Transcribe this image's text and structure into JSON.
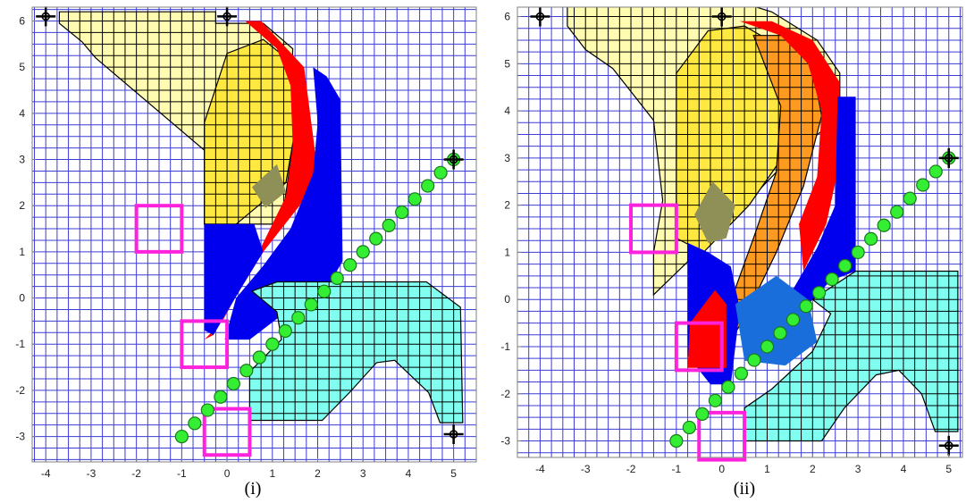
{
  "colors": {
    "background": "#ffffff",
    "grid": "#3c3cd6",
    "axis": "#808080",
    "cell_outline": "#000000",
    "yellow_light": "#fffbb0",
    "yellow": "#ffe840",
    "orange": "#ff9a20",
    "red": "#ff0000",
    "blue": "#0000ee",
    "blue_mid": "#1a6edc",
    "olive": "#8f8f58",
    "cyan": "#80fff0",
    "green_marker": "#33ee33",
    "magenta": "#ff22dd"
  },
  "chart_data": [
    {
      "type": "scatter",
      "caption": "(i)",
      "xlim": [
        -4.3,
        5.5
      ],
      "ylim": [
        -3.55,
        6.3
      ],
      "x_ticks": [
        -4,
        -3,
        -2,
        -1,
        0,
        1,
        2,
        3,
        4,
        5
      ],
      "y_ticks": [
        -3,
        -2,
        -1,
        0,
        1,
        2,
        3,
        4,
        5,
        6
      ],
      "grid": true,
      "grid_step": 0.25,
      "grid_color": "#3c3cd6",
      "endpoint_markers": [
        [
          -4,
          6.1
        ],
        [
          0,
          6.1
        ],
        [
          5,
          3
        ],
        [
          5,
          -2.95
        ]
      ],
      "green_markers_line": {
        "from": [
          -1,
          -3
        ],
        "to": [
          5,
          3
        ],
        "count": 22
      },
      "magenta_boxes": [
        {
          "x": [
            -2,
            -1
          ],
          "y": [
            1,
            2
          ]
        },
        {
          "x": [
            -1,
            0
          ],
          "y": [
            -1.5,
            -0.5
          ]
        },
        {
          "x": [
            -0.5,
            0.5
          ],
          "y": [
            -3.4,
            -2.4
          ]
        }
      ],
      "regions": [
        {
          "color": "yellow_light",
          "outlined": true,
          "polygon": [
            [
              -3.7,
              6.2
            ],
            [
              -0.25,
              6.2
            ],
            [
              -0.25,
              5.95
            ],
            [
              0.8,
              5.95
            ],
            [
              1.45,
              5.4
            ],
            [
              1.4,
              4
            ],
            [
              1.5,
              3.6
            ],
            [
              1.2,
              1.6
            ],
            [
              -0.5,
              1.6
            ],
            [
              -0.5,
              3.2
            ],
            [
              -2.9,
              5.2
            ],
            [
              -3.2,
              5.55
            ],
            [
              -3.7,
              5.95
            ]
          ]
        },
        {
          "color": "yellow",
          "outlined": true,
          "polygon": [
            [
              -0.5,
              1.6
            ],
            [
              0.2,
              1.6
            ],
            [
              1.3,
              2.5
            ],
            [
              1.6,
              4.2
            ],
            [
              1.3,
              5.2
            ],
            [
              0.8,
              5.6
            ],
            [
              0,
              5.3
            ],
            [
              -0.5,
              3.8
            ]
          ]
        },
        {
          "color": "red",
          "outlined": false,
          "polygon": [
            [
              0.4,
              6.0
            ],
            [
              0.75,
              6.0
            ],
            [
              1.7,
              5.0
            ],
            [
              1.9,
              3.5
            ],
            [
              2.0,
              2.7
            ],
            [
              1.6,
              2.0
            ],
            [
              0.8,
              1.0
            ],
            [
              0.3,
              0.2
            ],
            [
              -0.3,
              -0.8
            ],
            [
              -0.5,
              -0.9
            ],
            [
              -0.1,
              -0.5
            ],
            [
              0.4,
              0.4
            ],
            [
              0.9,
              1.4
            ],
            [
              1.3,
              2.2
            ],
            [
              1.45,
              3.3
            ],
            [
              1.4,
              4.6
            ],
            [
              1.1,
              5.4
            ]
          ]
        },
        {
          "color": "blue",
          "outlined": false,
          "polygon": [
            [
              1.9,
              5.0
            ],
            [
              2.2,
              4.8
            ],
            [
              2.5,
              4.3
            ],
            [
              2.55,
              0.8
            ],
            [
              2.2,
              0.2
            ],
            [
              1.3,
              -0.3
            ],
            [
              0.5,
              -0.9
            ],
            [
              -0.05,
              -0.9
            ],
            [
              0.2,
              0.0
            ],
            [
              0.8,
              0.7
            ],
            [
              1.4,
              1.5
            ],
            [
              1.9,
              2.7
            ],
            [
              2.0,
              3.8
            ]
          ]
        },
        {
          "color": "blue",
          "outlined": false,
          "polygon": [
            [
              -0.5,
              1.6
            ],
            [
              -0.5,
              -0.7
            ],
            [
              -0.3,
              -0.8
            ],
            [
              0.3,
              0.2
            ],
            [
              0.8,
              1.0
            ],
            [
              0.6,
              1.6
            ]
          ]
        },
        {
          "color": "olive",
          "outlined": false,
          "polygon": [
            [
              0.55,
              2.4
            ],
            [
              1.1,
              2.9
            ],
            [
              1.3,
              2.3
            ],
            [
              0.85,
              1.95
            ]
          ]
        },
        {
          "color": "cyan",
          "outlined": true,
          "polygon": [
            [
              0.55,
              0.15
            ],
            [
              1.1,
              0.35
            ],
            [
              4.4,
              0.35
            ],
            [
              5.15,
              -0.2
            ],
            [
              5.2,
              -2.7
            ],
            [
              4.7,
              -2.7
            ],
            [
              4.45,
              -2.05
            ],
            [
              3.7,
              -1.35
            ],
            [
              3.3,
              -1.4
            ],
            [
              2.7,
              -2.05
            ],
            [
              2.1,
              -2.65
            ],
            [
              0.5,
              -2.65
            ],
            [
              0.5,
              -1.6
            ],
            [
              1.2,
              -0.9
            ],
            [
              1.1,
              -0.3
            ]
          ]
        }
      ]
    },
    {
      "type": "scatter",
      "caption": "(ii)",
      "xlim": [
        -4.5,
        5.3
      ],
      "ylim": [
        -3.35,
        6.2
      ],
      "x_ticks": [
        -4,
        -3,
        -2,
        -1,
        0,
        1,
        2,
        3,
        4,
        5
      ],
      "y_ticks": [
        -3,
        -2,
        -1,
        0,
        1,
        2,
        3,
        4,
        5,
        6
      ],
      "grid": true,
      "grid_step": 0.25,
      "grid_color": "#3c3cd6",
      "endpoint_markers": [
        [
          -4,
          6.0
        ],
        [
          0,
          6.0
        ],
        [
          5,
          3
        ],
        [
          5,
          -3.1
        ]
      ],
      "green_markers_line": {
        "from": [
          -1,
          -3
        ],
        "to": [
          5,
          3
        ],
        "count": 22
      },
      "magenta_boxes": [
        {
          "x": [
            -2,
            -1
          ],
          "y": [
            1,
            2
          ]
        },
        {
          "x": [
            -1,
            0
          ],
          "y": [
            -1.5,
            -0.5
          ]
        },
        {
          "x": [
            -0.5,
            0.5
          ],
          "y": [
            -3.4,
            -2.4
          ]
        }
      ],
      "regions": [
        {
          "color": "yellow_light",
          "outlined": true,
          "polygon": [
            [
              -3.4,
              6.25
            ],
            [
              0.6,
              6.25
            ],
            [
              1.1,
              6.1
            ],
            [
              2.1,
              5.5
            ],
            [
              2.6,
              4.8
            ],
            [
              2.6,
              3.9
            ],
            [
              1.5,
              3.0
            ],
            [
              0,
              1.5
            ],
            [
              -1.5,
              0.1
            ],
            [
              -1.5,
              1.0
            ],
            [
              -1.3,
              2.1
            ],
            [
              -1.5,
              3.8
            ],
            [
              -2.4,
              4.9
            ],
            [
              -3.0,
              5.3
            ],
            [
              -3.4,
              5.8
            ]
          ]
        },
        {
          "color": "yellow",
          "outlined": true,
          "polygon": [
            [
              -1.0,
              4.8
            ],
            [
              -0.3,
              5.7
            ],
            [
              0.5,
              5.8
            ],
            [
              1.4,
              5.3
            ],
            [
              1.6,
              4.2
            ],
            [
              1.4,
              3.1
            ],
            [
              0.6,
              2.0
            ],
            [
              -0.4,
              1.0
            ],
            [
              -1.0,
              1.3
            ]
          ]
        },
        {
          "color": "orange",
          "outlined": true,
          "polygon": [
            [
              0.7,
              5.6
            ],
            [
              1.4,
              5.6
            ],
            [
              2.0,
              4.9
            ],
            [
              2.2,
              3.9
            ],
            [
              1.8,
              2.4
            ],
            [
              1.2,
              1.0
            ],
            [
              0.5,
              -0.4
            ],
            [
              0.3,
              -0.7
            ],
            [
              0.1,
              -0.3
            ],
            [
              0.7,
              1.3
            ],
            [
              1.2,
              2.7
            ],
            [
              1.3,
              4.1
            ]
          ]
        },
        {
          "color": "red",
          "outlined": false,
          "polygon": [
            [
              0.4,
              5.9
            ],
            [
              1.1,
              5.9
            ],
            [
              2.0,
              5.5
            ],
            [
              2.6,
              4.6
            ],
            [
              2.55,
              2.7
            ],
            [
              2.3,
              1.6
            ],
            [
              1.8,
              0.6
            ],
            [
              1.7,
              1.6
            ],
            [
              2.1,
              2.6
            ],
            [
              2.2,
              4.0
            ],
            [
              1.9,
              5.0
            ],
            [
              1.3,
              5.6
            ]
          ]
        },
        {
          "color": "blue",
          "outlined": false,
          "polygon": [
            [
              2.55,
              4.3
            ],
            [
              2.95,
              4.3
            ],
            [
              2.95,
              0.6
            ],
            [
              2.4,
              0.4
            ],
            [
              2.0,
              0.0
            ],
            [
              1.4,
              -0.7
            ],
            [
              0.9,
              -1.1
            ],
            [
              0.7,
              -0.9
            ],
            [
              1.5,
              0.1
            ],
            [
              2.1,
              1.1
            ],
            [
              2.5,
              2.0
            ]
          ]
        },
        {
          "color": "blue",
          "outlined": false,
          "polygon": [
            [
              -0.75,
              1.2
            ],
            [
              -0.3,
              1.0
            ],
            [
              0.2,
              0.7
            ],
            [
              0.4,
              -0.2
            ],
            [
              0.2,
              -1.8
            ],
            [
              -0.25,
              -1.8
            ],
            [
              -0.75,
              -1.2
            ]
          ]
        },
        {
          "color": "red",
          "outlined": false,
          "polygon": [
            [
              -0.7,
              -0.5
            ],
            [
              -0.15,
              0.2
            ],
            [
              0.1,
              -0.1
            ],
            [
              0.1,
              -1.45
            ],
            [
              -0.75,
              -1.45
            ]
          ]
        },
        {
          "color": "olive",
          "outlined": false,
          "polygon": [
            [
              -0.6,
              1.8
            ],
            [
              -0.2,
              2.5
            ],
            [
              0.3,
              2.0
            ],
            [
              0.1,
              1.3
            ],
            [
              -0.3,
              1.2
            ]
          ]
        },
        {
          "color": "blue_mid",
          "outlined": false,
          "polygon": [
            [
              0.3,
              -0.1
            ],
            [
              0.6,
              0.1
            ],
            [
              1.2,
              0.5
            ],
            [
              1.9,
              0.0
            ],
            [
              2.1,
              -0.9
            ],
            [
              1.4,
              -1.4
            ],
            [
              0.5,
              -1.3
            ]
          ]
        },
        {
          "color": "cyan",
          "outlined": true,
          "polygon": [
            [
              2.95,
              0.6
            ],
            [
              5.2,
              0.6
            ],
            [
              5.2,
              -2.8
            ],
            [
              4.7,
              -2.8
            ],
            [
              4.4,
              -2.0
            ],
            [
              3.9,
              -1.5
            ],
            [
              3.4,
              -1.6
            ],
            [
              2.7,
              -2.3
            ],
            [
              2.2,
              -3.0
            ],
            [
              0.5,
              -3.0
            ],
            [
              0.5,
              -2.3
            ],
            [
              1.1,
              -1.9
            ],
            [
              2.0,
              -1.1
            ],
            [
              2.4,
              -0.3
            ],
            [
              2.0,
              0.0
            ]
          ]
        }
      ]
    }
  ]
}
